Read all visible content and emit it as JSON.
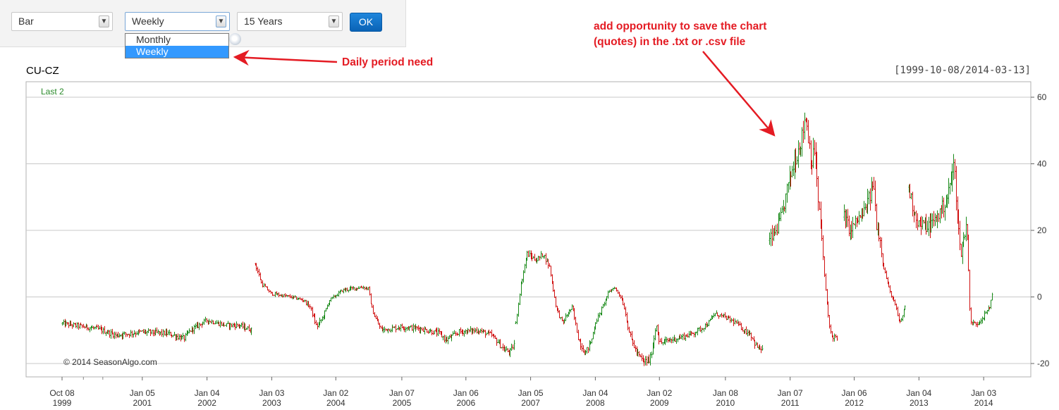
{
  "controls": {
    "chart_type": {
      "value": "Bar"
    },
    "period": {
      "value": "Weekly",
      "options": [
        "Monthly",
        "Weekly"
      ],
      "selected": "Weekly"
    },
    "range": {
      "value": "15 Years"
    },
    "ok_label": "OK"
  },
  "annotations": {
    "daily": "Daily period need",
    "save_line1": "add opportunity to save the chart",
    "save_line2": "(quotes) in the .txt or .csv file"
  },
  "chart": {
    "title": "CU-CZ",
    "range_label": "[1999-10-08/2014-03-13]",
    "legend": "Last 2",
    "watermark": "© 2014 SeasonAlgo.com",
    "colors": {
      "up": "#1a8a1a",
      "down": "#d01010",
      "grid": "#c8c8c8",
      "legend": "#2a8a2a"
    }
  },
  "chart_data": {
    "type": "bar",
    "subtype": "ohlc",
    "title": "CU-CZ",
    "legend": "Last 2",
    "date_range": [
      "1999-10-08",
      "2014-03-13"
    ],
    "ylim": [
      -21,
      63
    ],
    "y_ticks": [
      -20,
      0,
      20,
      40,
      60
    ],
    "x_ticks": [
      {
        "line1": "Oct 08",
        "line2": "1999",
        "t": 1999.77
      },
      {
        "line1": "Jan 05",
        "line2": "2001",
        "t": 2001.01
      },
      {
        "line1": "Jan 04",
        "line2": "2002",
        "t": 2002.01
      },
      {
        "line1": "Jan 03",
        "line2": "2003",
        "t": 2003.01
      },
      {
        "line1": "Jan 02",
        "line2": "2004",
        "t": 2004.0
      },
      {
        "line1": "Jan 07",
        "line2": "2005",
        "t": 2005.02
      },
      {
        "line1": "Jan 06",
        "line2": "2006",
        "t": 2006.01
      },
      {
        "line1": "Jan 05",
        "line2": "2007",
        "t": 2007.01
      },
      {
        "line1": "Jan 04",
        "line2": "2008",
        "t": 2008.01
      },
      {
        "line1": "Jan 02",
        "line2": "2009",
        "t": 2009.0
      },
      {
        "line1": "Jan 08",
        "line2": "2010",
        "t": 2010.02
      },
      {
        "line1": "Jan 07",
        "line2": "2011",
        "t": 2011.02
      },
      {
        "line1": "Jan 06",
        "line2": "2012",
        "t": 2012.01
      },
      {
        "line1": "Jan 04",
        "line2": "2013",
        "t": 2013.01
      },
      {
        "line1": "Jan 03",
        "line2": "2014",
        "t": 2014.01
      }
    ],
    "segments": [
      {
        "points": [
          [
            1999.77,
            -8
          ],
          [
            2000.3,
            -9.5
          ],
          [
            2000.6,
            -11.5
          ],
          [
            2001.0,
            -10.5
          ],
          [
            2001.4,
            -11
          ],
          [
            2001.65,
            -12.5
          ],
          [
            2001.75,
            -10
          ],
          [
            2002.0,
            -7
          ],
          [
            2002.3,
            -8.5
          ],
          [
            2002.5,
            -8.5
          ],
          [
            2002.7,
            -10
          ]
        ]
      },
      {
        "points": [
          [
            2002.75,
            10
          ],
          [
            2002.85,
            4
          ],
          [
            2003.0,
            1
          ],
          [
            2003.3,
            0
          ],
          [
            2003.5,
            -1
          ],
          [
            2003.6,
            -3
          ],
          [
            2003.7,
            -9
          ],
          [
            2003.8,
            -6
          ],
          [
            2003.9,
            -1
          ],
          [
            2004.1,
            2
          ],
          [
            2004.4,
            3
          ],
          [
            2004.5,
            2.5
          ],
          [
            2004.55,
            -3
          ],
          [
            2004.6,
            -6
          ],
          [
            2004.7,
            -10
          ],
          [
            2005.0,
            -9
          ],
          [
            2005.3,
            -9.5
          ],
          [
            2005.6,
            -11
          ],
          [
            2005.7,
            -13
          ],
          [
            2005.9,
            -10.5
          ],
          [
            2006.2,
            -10
          ],
          [
            2006.4,
            -11.5
          ],
          [
            2006.5,
            -13.5
          ],
          [
            2006.6,
            -16
          ],
          [
            2006.7,
            -16.5
          ],
          [
            2006.75,
            -14
          ]
        ]
      },
      {
        "points": [
          [
            2006.78,
            -8
          ],
          [
            2006.85,
            3
          ],
          [
            2006.95,
            13
          ],
          [
            2007.1,
            11
          ],
          [
            2007.2,
            13
          ],
          [
            2007.3,
            9
          ],
          [
            2007.4,
            -3
          ],
          [
            2007.5,
            -8
          ],
          [
            2007.55,
            -6
          ],
          [
            2007.65,
            -3
          ],
          [
            2007.7,
            -8
          ],
          [
            2007.75,
            -13
          ],
          [
            2007.85,
            -17
          ],
          [
            2007.95,
            -13
          ],
          [
            2008.0,
            -8
          ],
          [
            2008.1,
            -4
          ],
          [
            2008.2,
            1
          ],
          [
            2008.3,
            3
          ],
          [
            2008.4,
            0
          ],
          [
            2008.45,
            -3
          ],
          [
            2008.5,
            -8
          ],
          [
            2008.55,
            -12
          ],
          [
            2008.65,
            -17
          ],
          [
            2008.75,
            -19.5
          ],
          [
            2008.85,
            -19
          ],
          [
            2008.9,
            -14
          ],
          [
            2008.95,
            -8
          ],
          [
            2009.0,
            -14
          ],
          [
            2009.15,
            -13
          ],
          [
            2009.35,
            -12
          ],
          [
            2009.5,
            -11
          ],
          [
            2009.6,
            -10
          ],
          [
            2009.75,
            -8
          ],
          [
            2009.85,
            -5
          ],
          [
            2010.0,
            -6
          ],
          [
            2010.1,
            -7
          ],
          [
            2010.2,
            -8
          ],
          [
            2010.3,
            -10
          ],
          [
            2010.4,
            -11
          ],
          [
            2010.5,
            -15
          ],
          [
            2010.6,
            -16
          ]
        ]
      },
      {
        "points": [
          [
            2010.7,
            17
          ],
          [
            2010.8,
            20
          ],
          [
            2010.9,
            25
          ],
          [
            2011.0,
            35
          ],
          [
            2011.1,
            42
          ],
          [
            2011.2,
            48
          ],
          [
            2011.25,
            55
          ],
          [
            2011.3,
            48
          ],
          [
            2011.35,
            40
          ],
          [
            2011.4,
            45
          ],
          [
            2011.45,
            28
          ],
          [
            2011.5,
            20
          ],
          [
            2011.55,
            5
          ],
          [
            2011.6,
            -5
          ],
          [
            2011.65,
            -12
          ],
          [
            2011.7,
            -12
          ],
          [
            2011.75,
            -13
          ]
        ]
      },
      {
        "points": [
          [
            2011.85,
            24
          ],
          [
            2011.95,
            20
          ],
          [
            2012.05,
            23
          ],
          [
            2012.15,
            25
          ],
          [
            2012.25,
            30
          ],
          [
            2012.3,
            35
          ],
          [
            2012.35,
            22
          ],
          [
            2012.4,
            18
          ],
          [
            2012.45,
            10
          ],
          [
            2012.55,
            2
          ],
          [
            2012.65,
            -3
          ],
          [
            2012.7,
            -8
          ],
          [
            2012.75,
            -6
          ],
          [
            2012.8,
            -2
          ]
        ]
      },
      {
        "points": [
          [
            2012.85,
            33
          ],
          [
            2012.9,
            28
          ],
          [
            2013.0,
            22
          ],
          [
            2013.15,
            21
          ],
          [
            2013.25,
            23
          ],
          [
            2013.35,
            26
          ],
          [
            2013.45,
            30
          ],
          [
            2013.5,
            35
          ],
          [
            2013.55,
            40
          ],
          [
            2013.6,
            25
          ],
          [
            2013.65,
            12
          ],
          [
            2013.7,
            18
          ],
          [
            2013.75,
            22
          ],
          [
            2013.8,
            -8
          ],
          [
            2013.9,
            -8
          ],
          [
            2014.0,
            -6
          ],
          [
            2014.1,
            -3
          ],
          [
            2014.15,
            2
          ]
        ]
      }
    ],
    "visible_range": {
      "t_min": 1999.77,
      "t_max": 2014.15
    }
  }
}
